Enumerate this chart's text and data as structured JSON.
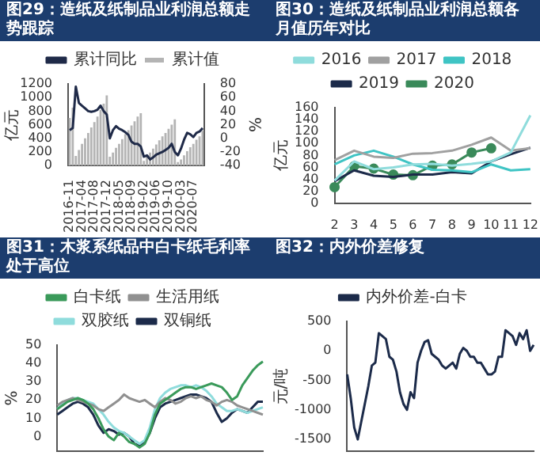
{
  "chart_data": [
    {
      "type": "bar",
      "title": "图29：造纸及纸制品业利润总额走势跟踪",
      "ylabel": "亿元",
      "y2label": "%",
      "legend": "top",
      "marker": "none",
      "categories": [
        "2016-11",
        null,
        null,
        null,
        "2017-04",
        null,
        null,
        null,
        "2017-08",
        null,
        null,
        null,
        "2017-12",
        null,
        null,
        null,
        "2018-05",
        null,
        null,
        null,
        "2018-09",
        null,
        null,
        null,
        "2019-02",
        null,
        null,
        null,
        "2019-06",
        null,
        null,
        null,
        "2019-10",
        null,
        null,
        null,
        "2020-03",
        null,
        null,
        null,
        "2020-07",
        null,
        null,
        null
      ],
      "ylim": [
        0,
        1200
      ],
      "yticks": [
        0,
        200,
        400,
        600,
        800,
        1000,
        1200
      ],
      "y2lim": [
        -40,
        80
      ],
      "y2ticks": [
        -40,
        -20,
        0,
        20,
        40,
        60,
        80
      ],
      "series": [
        {
          "name": "累计值",
          "type": "bar",
          "color": "#b4b4b4",
          "values": [
            700,
            850,
            140,
            230,
            320,
            400,
            480,
            560,
            640,
            720,
            820,
            910,
            1030,
            130,
            190,
            260,
            320,
            390,
            460,
            520,
            590,
            650,
            720,
            770,
            70,
            130,
            190,
            250,
            310,
            370,
            430,
            480,
            540,
            600,
            680,
            50,
            90,
            150,
            210,
            270,
            320,
            380,
            430,
            510
          ]
        },
        {
          "name": "累计同比",
          "type": "line",
          "axis": "y2",
          "color": "#1f2a48",
          "values": [
            12,
            15,
            76,
            52,
            48,
            44,
            40,
            39,
            40,
            42,
            48,
            40,
            35,
            0,
            12,
            18,
            14,
            12,
            9,
            5,
            -5,
            -8,
            -8,
            -12,
            -27,
            -25,
            -31,
            -28,
            -24,
            -22,
            -20,
            -17,
            -14,
            -8,
            -20,
            -25,
            -15,
            -2,
            8,
            6,
            2,
            8,
            10,
            15
          ]
        }
      ]
    },
    {
      "type": "line",
      "title": "图30：造纸及纸制品业利润总额各月值历年对比",
      "ylabel": "亿元",
      "legend": "top",
      "marker": "none",
      "categories": [
        "2",
        "3",
        "4",
        "5",
        "6",
        "7",
        "8",
        "9",
        "10",
        "11",
        "12"
      ],
      "ylim": [
        0,
        160
      ],
      "yticks": [
        0,
        20,
        40,
        60,
        80,
        100,
        120,
        140,
        160
      ],
      "series": [
        {
          "name": "2016",
          "color": "#8fdcdc",
          "values": [
            38,
            70,
            57,
            60,
            65,
            66,
            63,
            66,
            70,
            85,
            147
          ]
        },
        {
          "name": "2017",
          "color": "#a0a0a0",
          "values": [
            72,
            88,
            78,
            76,
            83,
            84,
            88,
            98,
            110,
            88,
            92
          ]
        },
        {
          "name": "2018",
          "color": "#3fc4c4",
          "values": [
            65,
            80,
            88,
            78,
            65,
            56,
            55,
            52,
            65,
            55,
            57
          ]
        },
        {
          "name": "2019",
          "color": "#1c2b4a",
          "values": [
            37,
            55,
            46,
            44,
            48,
            48,
            52,
            50,
            70,
            82,
            93
          ]
        },
        {
          "name": "2020",
          "color": "#3a8a5a",
          "marker": "circle",
          "values": [
            27,
            62,
            58,
            48,
            47,
            63,
            65,
            85,
            92,
            null,
            null
          ]
        }
      ]
    },
    {
      "type": "line",
      "title": "图31：木浆系纸品中白卡纸毛利率处于高位",
      "ylabel": "%",
      "legend": "top",
      "marker": "none",
      "tick_labels": "y",
      "categories": [
        null,
        null,
        null,
        null,
        null,
        null,
        null,
        null,
        null,
        null,
        null,
        null,
        null,
        null,
        null,
        null,
        null,
        null,
        null,
        null,
        null,
        null,
        null,
        null,
        null,
        null,
        null,
        null,
        null,
        null,
        null,
        null,
        null,
        null,
        null,
        null,
        null,
        null,
        null,
        null,
        null
      ],
      "ylim": [
        -8,
        50
      ],
      "yticks": [
        0,
        10,
        20,
        30,
        40,
        50
      ],
      "series": [
        {
          "name": "白卡纸",
          "color": "#3a9a5a",
          "values": [
            15,
            17,
            19,
            20,
            21,
            20,
            18,
            15,
            10,
            4,
            0,
            -2,
            2,
            0,
            -3,
            -4,
            -6,
            -4,
            2,
            12,
            18,
            20,
            22,
            24,
            26,
            27,
            27,
            26,
            27,
            28,
            29,
            28,
            27,
            24,
            20,
            22,
            28,
            32,
            36,
            39,
            41
          ]
        },
        {
          "name": "生活用纸",
          "color": "#909090",
          "values": [
            17,
            19,
            20,
            21,
            20,
            19,
            18,
            17,
            15,
            14,
            16,
            18,
            20,
            23,
            21,
            20,
            19,
            20,
            18,
            16,
            19,
            21,
            20,
            18,
            19,
            21,
            22,
            21,
            22,
            20,
            19,
            17,
            19,
            20,
            19,
            17,
            16,
            15,
            14,
            13,
            12
          ]
        },
        {
          "name": "双胶纸",
          "color": "#8fdcdc",
          "values": [
            15,
            18,
            20,
            21,
            21,
            20,
            19,
            18,
            15,
            12,
            8,
            5,
            3,
            2,
            0,
            -2,
            -4,
            -2,
            5,
            15,
            21,
            24,
            26,
            27,
            28,
            28,
            27,
            28,
            27,
            25,
            22,
            18,
            16,
            14,
            14,
            15,
            14,
            13,
            14,
            15,
            16
          ]
        },
        {
          "name": "双铜纸",
          "color": "#1c2b4a",
          "values": [
            12,
            14,
            16,
            18,
            19,
            18,
            16,
            12,
            6,
            2,
            4,
            3,
            1,
            2,
            0,
            -4,
            -5,
            -3,
            2,
            10,
            16,
            18,
            19,
            20,
            21,
            22,
            23,
            23,
            22,
            21,
            19,
            13,
            8,
            10,
            13,
            15,
            14,
            13,
            16,
            19,
            19
          ]
        }
      ]
    },
    {
      "type": "line",
      "title": "图32：内外价差修复",
      "ylabel": "元/吨",
      "legend": "top",
      "marker": "none",
      "tick_labels": "y",
      "categories": [
        null,
        null,
        null,
        null,
        null,
        null,
        null,
        null,
        null,
        null,
        null,
        null,
        null,
        null,
        null,
        null,
        null,
        null,
        null,
        null,
        null,
        null,
        null,
        null,
        null,
        null,
        null,
        null,
        null,
        null,
        null,
        null,
        null,
        null,
        null,
        null,
        null,
        null,
        null,
        null,
        null,
        null,
        null,
        null,
        null,
        null,
        null,
        null,
        null,
        null,
        null,
        null,
        null,
        null
      ],
      "ylim": [
        -1700,
        500
      ],
      "yticks": [
        -1500,
        -1000,
        -500,
        0,
        500
      ],
      "series": [
        {
          "name": "内外价差-白卡",
          "color": "#1c2b4a",
          "values": [
            -400,
            -800,
            -1300,
            -1500,
            -1200,
            -900,
            -600,
            -250,
            -200,
            300,
            250,
            200,
            -100,
            -150,
            -350,
            -700,
            -900,
            -1000,
            -700,
            -800,
            -200,
            0,
            150,
            180,
            -50,
            -100,
            -150,
            -250,
            -300,
            -250,
            -200,
            -300,
            -50,
            50,
            0,
            -100,
            -100,
            -200,
            -200,
            -300,
            -400,
            -400,
            -350,
            -100,
            -100,
            350,
            300,
            250,
            100,
            300,
            200,
            350,
            0,
            100
          ]
        }
      ]
    }
  ]
}
